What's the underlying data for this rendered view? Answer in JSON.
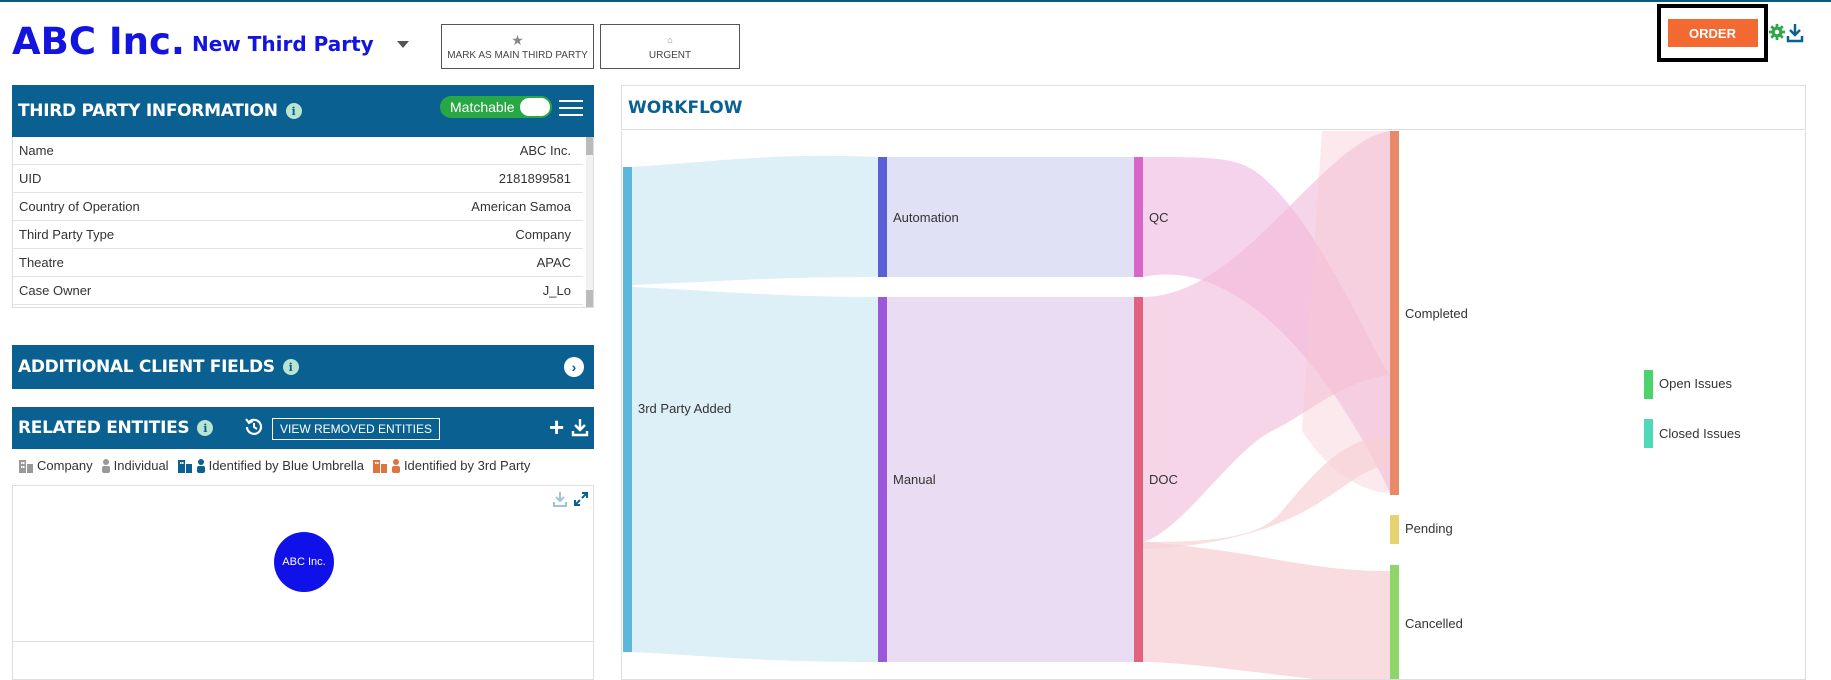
{
  "header": {
    "company": "ABC Inc.",
    "third_party_select": "New Third Party",
    "mark_main_label": "MARK AS MAIN THIRD PARTY",
    "urgent_label": "URGENT",
    "order_label": "ORDER"
  },
  "third_party_info": {
    "title": "THIRD PARTY INFORMATION",
    "matchable_label": "Matchable",
    "matchable_on": true,
    "rows": [
      {
        "label": "Name",
        "value": "ABC Inc."
      },
      {
        "label": "UID",
        "value": "2181899581"
      },
      {
        "label": "Country of Operation",
        "value": "American Samoa"
      },
      {
        "label": "Third Party Type",
        "value": "Company"
      },
      {
        "label": "Theatre",
        "value": "APAC"
      },
      {
        "label": "Case Owner",
        "value": "J_Lo"
      }
    ]
  },
  "additional_client_fields": {
    "title": "ADDITIONAL CLIENT FIELDS"
  },
  "related_entities": {
    "title": "RELATED ENTITIES",
    "view_removed_label": "VIEW REMOVED ENTITIES",
    "legend": [
      "Company",
      "Individual",
      "Identified by Blue Umbrella",
      "Identified by 3rd Party"
    ],
    "node_label": "ABC Inc."
  },
  "workflow": {
    "title": "WORKFLOW",
    "nodes": {
      "added": "3rd Party Added",
      "automation": "Automation",
      "manual": "Manual",
      "qc": "QC",
      "doc": "DOC",
      "completed": "Completed",
      "pending": "Pending",
      "cancelled": "Cancelled",
      "open_issues": "Open Issues",
      "closed_issues": "Closed Issues"
    },
    "colors": {
      "added": "#5bb8dc",
      "automation": "#5a5fd6",
      "manual": "#9b59d9",
      "qc": "#d865c9",
      "doc": "#e0627f",
      "completed": "#e8896a",
      "pending": "#e6d36f",
      "cancelled": "#8fd66a",
      "open_issues": "#4cd36b",
      "closed_issues": "#4fd9b9"
    }
  },
  "icons": {
    "star": "star-icon",
    "bell": "bell-icon",
    "gear": "gear-icon",
    "download": "download-icon",
    "info": "info-icon",
    "menu": "menu-icon",
    "history": "history-icon",
    "plus": "plus-icon",
    "expand": "expand-icon",
    "chevron": "chevron-right-icon"
  }
}
